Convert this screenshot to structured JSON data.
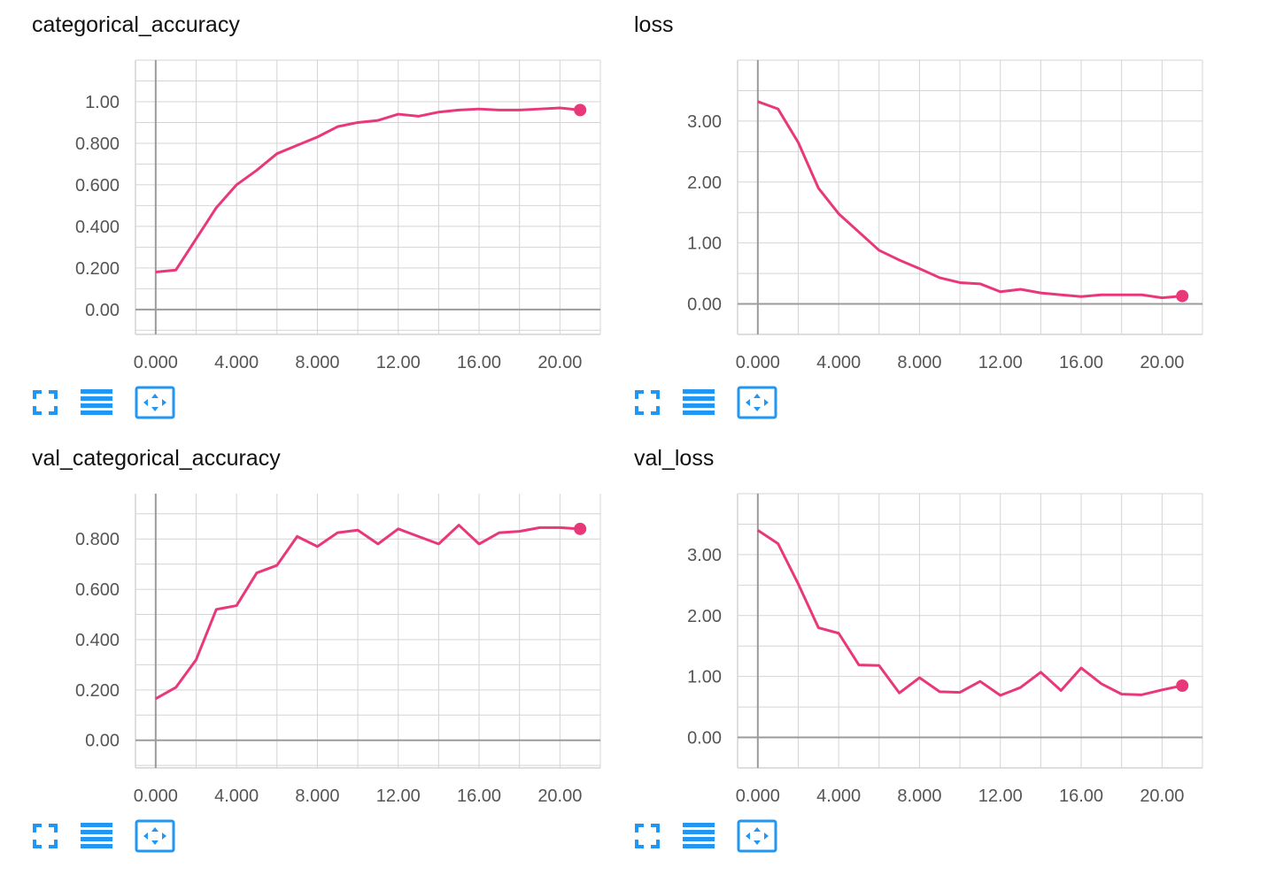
{
  "colors": {
    "series": "#e8387a",
    "grid": "#d4d4d4",
    "axis": "#9b9b9b",
    "tick_text": "#555555",
    "control": "#2196f3"
  },
  "icons": [
    "fullscreen-icon",
    "toggle-log-scale-icon",
    "fit-domain-icon"
  ],
  "chart_data": [
    {
      "id": "categorical_accuracy",
      "type": "line",
      "title": "categorical_accuracy",
      "xlabel": "",
      "ylabel": "",
      "grid": true,
      "xlim": [
        -1,
        22
      ],
      "ylim": [
        -0.12,
        1.2
      ],
      "xticks": [
        0,
        4,
        8,
        12,
        16,
        20
      ],
      "xtick_labels": [
        "0.000",
        "4.000",
        "8.000",
        "12.00",
        "16.00",
        "20.00"
      ],
      "yticks": [
        0,
        0.2,
        0.4,
        0.6,
        0.8,
        1.0
      ],
      "ytick_labels": [
        "0.00",
        "0.200",
        "0.400",
        "0.600",
        "0.800",
        "1.00"
      ],
      "x": [
        0,
        1,
        2,
        3,
        4,
        5,
        6,
        7,
        8,
        9,
        10,
        11,
        12,
        13,
        14,
        15,
        16,
        17,
        18,
        19,
        20,
        21
      ],
      "series": [
        {
          "values": [
            0.18,
            0.19,
            0.34,
            0.49,
            0.6,
            0.67,
            0.75,
            0.79,
            0.83,
            0.88,
            0.9,
            0.91,
            0.94,
            0.93,
            0.95,
            0.96,
            0.965,
            0.96,
            0.96,
            0.965,
            0.97,
            0.96
          ]
        }
      ]
    },
    {
      "id": "loss",
      "type": "line",
      "title": "loss",
      "xlabel": "",
      "ylabel": "",
      "grid": true,
      "xlim": [
        -1,
        22
      ],
      "ylim": [
        -0.5,
        4.0
      ],
      "xticks": [
        0,
        4,
        8,
        12,
        16,
        20
      ],
      "xtick_labels": [
        "0.000",
        "4.000",
        "8.000",
        "12.00",
        "16.00",
        "20.00"
      ],
      "yticks": [
        0,
        1,
        2,
        3
      ],
      "ytick_labels": [
        "0.00",
        "1.00",
        "2.00",
        "3.00"
      ],
      "x": [
        0,
        1,
        2,
        3,
        4,
        5,
        6,
        7,
        8,
        9,
        10,
        11,
        12,
        13,
        14,
        15,
        16,
        17,
        18,
        19,
        20,
        21
      ],
      "series": [
        {
          "values": [
            3.32,
            3.2,
            2.65,
            1.9,
            1.48,
            1.18,
            0.88,
            0.72,
            0.58,
            0.43,
            0.35,
            0.33,
            0.2,
            0.24,
            0.18,
            0.15,
            0.12,
            0.15,
            0.15,
            0.15,
            0.1,
            0.13
          ]
        }
      ]
    },
    {
      "id": "val_categorical_accuracy",
      "type": "line",
      "title": "val_categorical_accuracy",
      "xlabel": "",
      "ylabel": "",
      "grid": true,
      "xlim": [
        -1,
        22
      ],
      "ylim": [
        -0.11,
        0.98
      ],
      "xticks": [
        0,
        4,
        8,
        12,
        16,
        20
      ],
      "xtick_labels": [
        "0.000",
        "4.000",
        "8.000",
        "12.00",
        "16.00",
        "20.00"
      ],
      "yticks": [
        0,
        0.2,
        0.4,
        0.6,
        0.8
      ],
      "ytick_labels": [
        "0.00",
        "0.200",
        "0.400",
        "0.600",
        "0.800"
      ],
      "x": [
        0,
        1,
        2,
        3,
        4,
        5,
        6,
        7,
        8,
        9,
        10,
        11,
        12,
        13,
        14,
        15,
        16,
        17,
        18,
        19,
        20,
        21
      ],
      "series": [
        {
          "values": [
            0.165,
            0.21,
            0.32,
            0.52,
            0.535,
            0.665,
            0.695,
            0.81,
            0.77,
            0.825,
            0.835,
            0.78,
            0.84,
            0.81,
            0.78,
            0.855,
            0.78,
            0.825,
            0.83,
            0.845,
            0.845,
            0.84
          ]
        }
      ]
    },
    {
      "id": "val_loss",
      "type": "line",
      "title": "val_loss",
      "xlabel": "",
      "ylabel": "",
      "grid": true,
      "xlim": [
        -1,
        22
      ],
      "ylim": [
        -0.5,
        4.0
      ],
      "xticks": [
        0,
        4,
        8,
        12,
        16,
        20
      ],
      "xtick_labels": [
        "0.000",
        "4.000",
        "8.000",
        "12.00",
        "16.00",
        "20.00"
      ],
      "yticks": [
        0,
        1,
        2,
        3
      ],
      "ytick_labels": [
        "0.00",
        "1.00",
        "2.00",
        "3.00"
      ],
      "x": [
        0,
        1,
        2,
        3,
        4,
        5,
        6,
        7,
        8,
        9,
        10,
        11,
        12,
        13,
        14,
        15,
        16,
        17,
        18,
        19,
        20,
        21
      ],
      "series": [
        {
          "values": [
            3.4,
            3.18,
            2.52,
            1.8,
            1.71,
            1.19,
            1.18,
            0.73,
            0.98,
            0.75,
            0.74,
            0.92,
            0.69,
            0.82,
            1.07,
            0.77,
            1.14,
            0.88,
            0.71,
            0.7,
            0.78,
            0.85
          ]
        }
      ]
    }
  ]
}
